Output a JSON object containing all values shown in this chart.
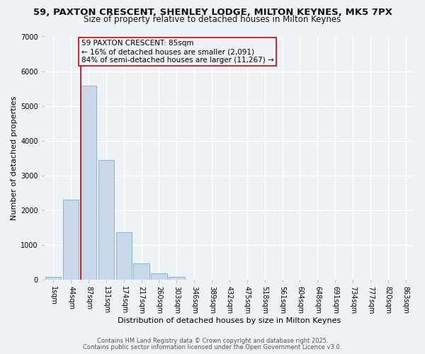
{
  "title_line1": "59, PAXTON CRESCENT, SHENLEY LODGE, MILTON KEYNES, MK5 7PX",
  "title_line2": "Size of property relative to detached houses in Milton Keynes",
  "xlabel": "Distribution of detached houses by size in Milton Keynes",
  "ylabel": "Number of detached properties",
  "bar_labels": [
    "1sqm",
    "44sqm",
    "87sqm",
    "131sqm",
    "174sqm",
    "217sqm",
    "260sqm",
    "303sqm",
    "346sqm",
    "389sqm",
    "432sqm",
    "475sqm",
    "518sqm",
    "561sqm",
    "604sqm",
    "648sqm",
    "691sqm",
    "734sqm",
    "777sqm",
    "820sqm",
    "863sqm"
  ],
  "bar_values": [
    75,
    2300,
    5580,
    3450,
    1360,
    460,
    175,
    80,
    0,
    0,
    0,
    0,
    0,
    0,
    0,
    0,
    0,
    0,
    0,
    0,
    0
  ],
  "bar_color": "#c8d8e8",
  "bar_edgecolor": "#7facc8",
  "background_color": "#eef2f7",
  "grid_color": "#ffffff",
  "vline_x_index": 2,
  "vline_color": "#cc0000",
  "annotation_text": "59 PAXTON CRESCENT: 85sqm\n← 16% of detached houses are smaller (2,091)\n84% of semi-detached houses are larger (11,267) →",
  "annotation_box_edgecolor": "#cc0000",
  "ylim": [
    0,
    7000
  ],
  "yticks": [
    0,
    1000,
    2000,
    3000,
    4000,
    5000,
    6000,
    7000
  ],
  "footer_line1": "Contains HM Land Registry data © Crown copyright and database right 2025.",
  "footer_line2": "Contains public sector information licensed under the Open Government Licence v3.0.",
  "title_fontsize": 9.5,
  "subtitle_fontsize": 8.5,
  "axis_label_fontsize": 8,
  "tick_fontsize": 7,
  "annotation_fontsize": 7.5,
  "footer_fontsize": 6
}
